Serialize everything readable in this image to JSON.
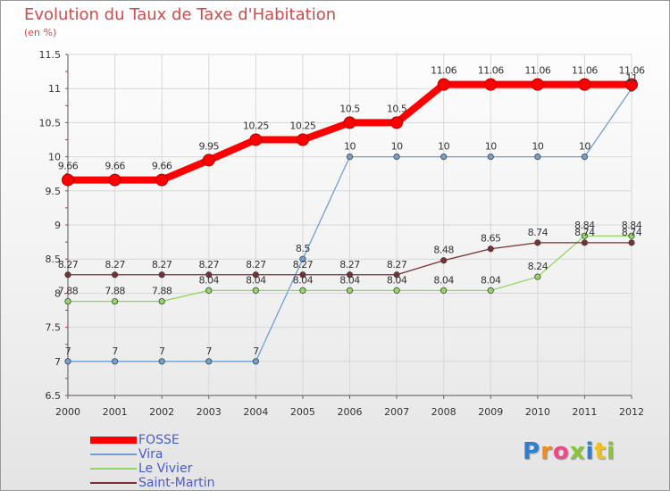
{
  "title": "Evolution du Taux de Taxe d'Habitation",
  "subtitle": "(en %)",
  "logo_text": "Proxiti",
  "chart_data": {
    "type": "line",
    "title": "Evolution du Taux de Taxe d'Habitation",
    "ylabel": "(en %)",
    "x": [
      "2000",
      "2001",
      "2002",
      "2003",
      "2004",
      "2005",
      "2006",
      "2007",
      "2008",
      "2009",
      "2010",
      "2011",
      "2012"
    ],
    "ylim": [
      6.5,
      11.5
    ],
    "yticks": [
      "6.5",
      "7",
      "7.5",
      "8",
      "8.5",
      "9",
      "9.5",
      "10",
      "10.5",
      "11",
      "11.5"
    ],
    "grid": true,
    "legend_position": "bottom-left",
    "series": [
      {
        "name": "FOSSE",
        "color": "#ff0000",
        "values": [
          9.66,
          9.66,
          9.66,
          9.95,
          10.25,
          10.25,
          10.5,
          10.5,
          11.06,
          11.06,
          11.06,
          11.06,
          11.06
        ],
        "labels": [
          "9.66",
          "9.66",
          "9.66",
          "9.95",
          "10.25",
          "10.25",
          "10.5",
          "10.5",
          "11.06",
          "11.06",
          "11.06",
          "11.06",
          "11.06"
        ]
      },
      {
        "name": "Vira",
        "color": "#6fa0d0",
        "values": [
          7,
          7,
          7,
          7,
          7,
          8.5,
          10,
          10,
          10,
          10,
          10,
          10,
          11
        ],
        "labels": [
          "7",
          "7",
          "7",
          "7",
          "7",
          "8.5",
          "10",
          "10",
          "10",
          "10",
          "10",
          "10",
          "11"
        ]
      },
      {
        "name": "Le Vivier",
        "color": "#90d860",
        "values": [
          7.88,
          7.88,
          7.88,
          8.04,
          8.04,
          8.04,
          8.04,
          8.04,
          8.04,
          8.04,
          8.24,
          8.84,
          8.84
        ],
        "labels": [
          "7.88",
          "7.88",
          "7.88",
          "8.04",
          "8.04",
          "8.04",
          "8.04",
          "8.04",
          "8.04",
          "8.04",
          "8.24",
          "8.84",
          "8.84"
        ]
      },
      {
        "name": "Saint-Martin",
        "color": "#7a3030",
        "values": [
          8.27,
          8.27,
          8.27,
          8.27,
          8.27,
          8.27,
          8.27,
          8.27,
          8.48,
          8.65,
          8.74,
          8.74,
          8.74
        ],
        "labels": [
          "8.27",
          "8.27",
          "8.27",
          "8.27",
          "8.27",
          "8.27",
          "8.27",
          "8.27",
          "8.48",
          "8.65",
          "8.74",
          "8.74",
          "8.74"
        ]
      }
    ]
  }
}
